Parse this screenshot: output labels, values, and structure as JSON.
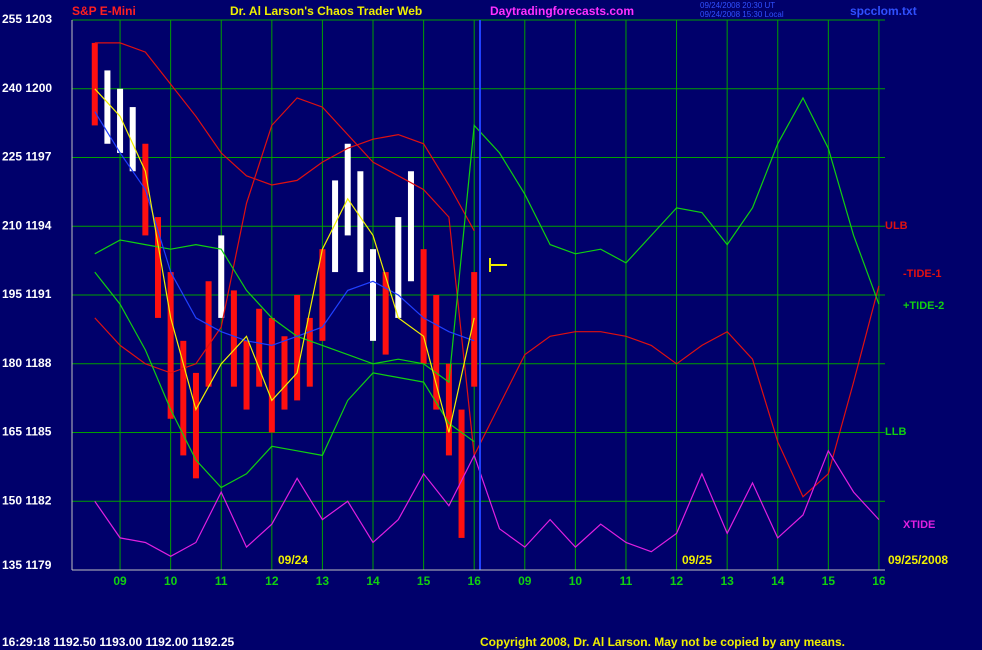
{
  "chart_data": {
    "type": "line",
    "header": {
      "symbol": "S&P E-Mini",
      "title": "Dr. Al Larson's Chaos Trader Web",
      "site": "Daytradingforecasts.com",
      "timestamp_ut": "09/24/2008 20:30 UT",
      "timestamp_local": "09/24/2008 15:30 Local",
      "file": "spcclom.txt"
    },
    "status": "16:29:18  1192.50 1193.00 1192.00 1192.25",
    "copyright": "Copyright 2008, Dr. Al Larson. May not be copied by any means.",
    "annotations": [
      "09/24",
      "09/25",
      "09/25/2008"
    ],
    "grid": true,
    "xlim": [
      8.05,
      24.12
    ],
    "ylim": [
      135,
      255
    ],
    "xticks": [
      {
        "value": 9,
        "label": "09"
      },
      10,
      11,
      12,
      13,
      14,
      15,
      16,
      {
        "value": 17,
        "label": "09"
      },
      {
        "value": 18,
        "label": "10"
      },
      {
        "value": 19,
        "label": "11"
      },
      {
        "value": 20,
        "label": "12"
      },
      {
        "value": 21,
        "label": "13"
      },
      {
        "value": 22,
        "label": "14"
      },
      {
        "value": 23,
        "label": "15"
      },
      {
        "value": 24,
        "label": "16"
      }
    ],
    "yticks": [
      {
        "value": 255,
        "label": "255 1203"
      },
      {
        "value": 240,
        "label": "240 1200"
      },
      {
        "value": 225,
        "label": "225 1197"
      },
      {
        "value": 210,
        "label": "210 1194"
      },
      {
        "value": 195,
        "label": "195 1191"
      },
      {
        "value": 180,
        "label": "180 1188"
      },
      {
        "value": 165,
        "label": "165 1185"
      },
      {
        "value": 150,
        "label": "150 1182"
      },
      {
        "value": 135,
        "label": "135 1179"
      }
    ],
    "x": [
      8.5,
      9,
      9.5,
      10,
      10.5,
      11,
      11.5,
      12,
      12.5,
      13,
      13.5,
      14,
      14.5,
      15,
      15.5,
      16,
      16.5,
      17,
      17.5,
      18,
      18.5,
      19,
      19.5,
      20,
      20.5,
      21,
      21.5,
      22,
      22.5,
      23,
      23.5,
      24
    ],
    "series": [
      {
        "name": "ULB",
        "color": "#e01010",
        "values": [
          250,
          250,
          248,
          241,
          234,
          226,
          221,
          219,
          220,
          224,
          227,
          229,
          230,
          228,
          219,
          209,
          null,
          null,
          null,
          null,
          null,
          null,
          null,
          null,
          null,
          null,
          null,
          null,
          null,
          null,
          null,
          null
        ]
      },
      {
        "name": "-TIDE-1",
        "color": "#e01010",
        "values": [
          190,
          184,
          180,
          178,
          180,
          188,
          215,
          232,
          238,
          236,
          230,
          224,
          221,
          218,
          212,
          160,
          171,
          182,
          186,
          187,
          187,
          186,
          184,
          180,
          184,
          187,
          181,
          163,
          151,
          156,
          176,
          197
        ]
      },
      {
        "name": "+TIDE-2",
        "color": "#10d010",
        "values": [
          204,
          207,
          206,
          205,
          206,
          205,
          196,
          190,
          186,
          184,
          182,
          180,
          181,
          180,
          176,
          232,
          226,
          217,
          206,
          204,
          205,
          202,
          208,
          214,
          213,
          206,
          214,
          228,
          238,
          227,
          208,
          193
        ]
      },
      {
        "name": "LLB",
        "color": "#10d010",
        "values": [
          200,
          193,
          183,
          170,
          159,
          153,
          156,
          162,
          161,
          160,
          172,
          178,
          177,
          176,
          167,
          163,
          null,
          null,
          null,
          null,
          null,
          null,
          null,
          null,
          null,
          null,
          null,
          null,
          null,
          null,
          null,
          null
        ]
      },
      {
        "name": "XTIDE",
        "color": "#e020e0",
        "values": [
          150,
          142,
          141,
          138,
          141,
          152,
          140,
          145,
          155,
          146,
          150,
          141,
          146,
          156,
          149,
          160,
          144,
          140,
          146,
          140,
          145,
          141,
          139,
          143,
          156,
          143,
          154,
          142,
          147,
          161,
          152,
          146
        ]
      },
      {
        "color": "#2040ff",
        "values": [
          235,
          226,
          218,
          200,
          190,
          187,
          185,
          184,
          186,
          188,
          196,
          198,
          195,
          190,
          187,
          185,
          null,
          null,
          null,
          null,
          null,
          null,
          null,
          null,
          null,
          null,
          null,
          null,
          null,
          null,
          null,
          null
        ]
      },
      {
        "color": "#f0f000",
        "values": [
          240,
          234,
          222,
          190,
          170,
          180,
          186,
          172,
          178,
          205,
          216,
          208,
          190,
          186,
          165,
          190,
          null,
          null,
          null,
          null,
          null,
          null,
          null,
          null,
          null,
          null,
          null,
          null,
          null,
          null,
          null,
          null
        ]
      }
    ],
    "bars": {
      "x": [
        8.5,
        8.75,
        9,
        9.25,
        9.5,
        9.75,
        10,
        10.25,
        10.5,
        10.75,
        11,
        11.25,
        11.5,
        11.75,
        12,
        12.25,
        12.5,
        12.75,
        13,
        13.25,
        13.5,
        13.75,
        14,
        14.25,
        14.5,
        14.75,
        15,
        15.25,
        15.5,
        15.75,
        16
      ],
      "high": [
        250,
        244,
        240,
        236,
        228,
        212,
        200,
        185,
        178,
        198,
        208,
        196,
        185,
        192,
        190,
        186,
        195,
        190,
        205,
        220,
        228,
        222,
        205,
        200,
        212,
        222,
        205,
        195,
        180,
        170,
        200
      ],
      "low": [
        232,
        228,
        226,
        222,
        208,
        190,
        168,
        160,
        155,
        175,
        190,
        175,
        170,
        175,
        165,
        170,
        172,
        175,
        185,
        200,
        208,
        200,
        185,
        182,
        190,
        198,
        180,
        170,
        160,
        142,
        175
      ],
      "colors": [
        "#ff1010",
        "#ffffff",
        "#ffffff",
        "#ffffff",
        "#ff1010",
        "#ff1010",
        "#ff1010",
        "#ff1010",
        "#ff1010",
        "#ff1010",
        "#ffffff",
        "#ff1010",
        "#ff1010",
        "#ff1010",
        "#ff1010",
        "#ff1010",
        "#ff1010",
        "#ff1010",
        "#ff1010",
        "#ffffff",
        "#ffffff",
        "#ffffff",
        "#ffffff",
        "#ff1010",
        "#ffffff",
        "#ffffff",
        "#ff1010",
        "#ff1010",
        "#ff1010",
        "#ff1010",
        "#ff1010"
      ]
    }
  }
}
